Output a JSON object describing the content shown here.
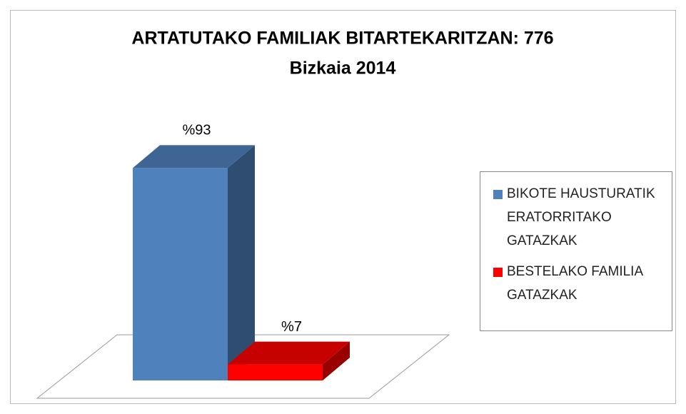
{
  "chart_data": {
    "type": "bar3d",
    "title": "ARTATUTAKO FAMILIAK BITARTEKARITZAN: 776",
    "subtitle": "Bizkaia 2014",
    "series": [
      {
        "name": "BIKOTE HAUSTURATIK ERATORRITAKO GATAZKAK",
        "color": "#4f81bd",
        "values": [
          93
        ],
        "value_labels": [
          "%93"
        ]
      },
      {
        "name": "BESTELAKO FAMILIA GATAZKAK",
        "color": "#ff0000",
        "values": [
          7
        ],
        "value_labels": [
          "%7"
        ]
      }
    ]
  }
}
